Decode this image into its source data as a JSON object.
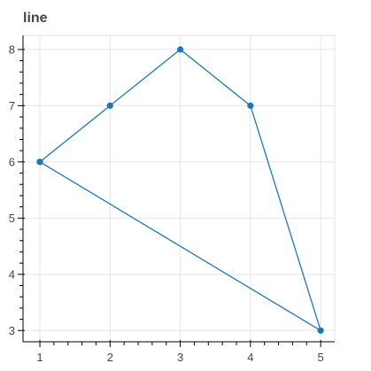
{
  "chart_data": {
    "type": "line",
    "title": "line",
    "xlabel": "",
    "ylabel": "",
    "x": [
      1,
      2,
      3,
      4,
      5,
      1
    ],
    "series": [
      {
        "values": [
          6,
          7,
          8,
          7,
          3,
          6
        ]
      }
    ],
    "xlim": [
      0.76,
      5.2
    ],
    "ylim": [
      2.8,
      8.25
    ],
    "x_ticks": [
      1,
      2,
      3,
      4,
      5
    ],
    "y_ticks": [
      3,
      4,
      5,
      6,
      7,
      8
    ],
    "grid": true,
    "color": "#1f77b4"
  }
}
